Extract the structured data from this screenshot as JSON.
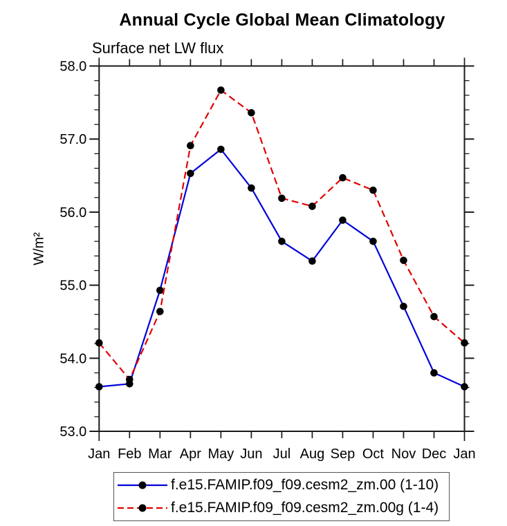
{
  "chart_data": {
    "type": "line",
    "title": "Annual Cycle Global Mean Climatology",
    "subtitle": "Surface net LW flux",
    "ylabel": "W/m²",
    "xlabel": "",
    "categories": [
      "Jan",
      "Feb",
      "Mar",
      "Apr",
      "May",
      "Jun",
      "Jul",
      "Aug",
      "Sep",
      "Oct",
      "Nov",
      "Dec",
      "Jan"
    ],
    "ylim": [
      53.0,
      58.0
    ],
    "ytick_interval": 1.0,
    "yminor_interval": 0.2,
    "ytick_label_format": "one_decimal",
    "grid": "off",
    "legend_position": "bottom",
    "axis_color": "#1a1a1a",
    "marker_color": "#000000",
    "series": [
      {
        "name": "f.e15.FAMIP.f09_f09.cesm2_zm.00 (1-10)",
        "color": "#0000dc",
        "line_style": "solid",
        "marker": "circle",
        "values": [
          53.61,
          53.65,
          54.93,
          56.53,
          56.86,
          56.33,
          55.6,
          55.33,
          55.89,
          55.6,
          54.71,
          53.8,
          53.61
        ]
      },
      {
        "name": "f.e15.FAMIP.f09_f09.cesm2_zm.00g (1-4)",
        "color": "#e10000",
        "line_style": "dashed",
        "marker": "circle",
        "values": [
          54.21,
          53.71,
          54.64,
          56.91,
          57.67,
          57.36,
          56.19,
          56.08,
          56.47,
          56.3,
          55.34,
          54.57,
          54.21
        ]
      }
    ]
  }
}
